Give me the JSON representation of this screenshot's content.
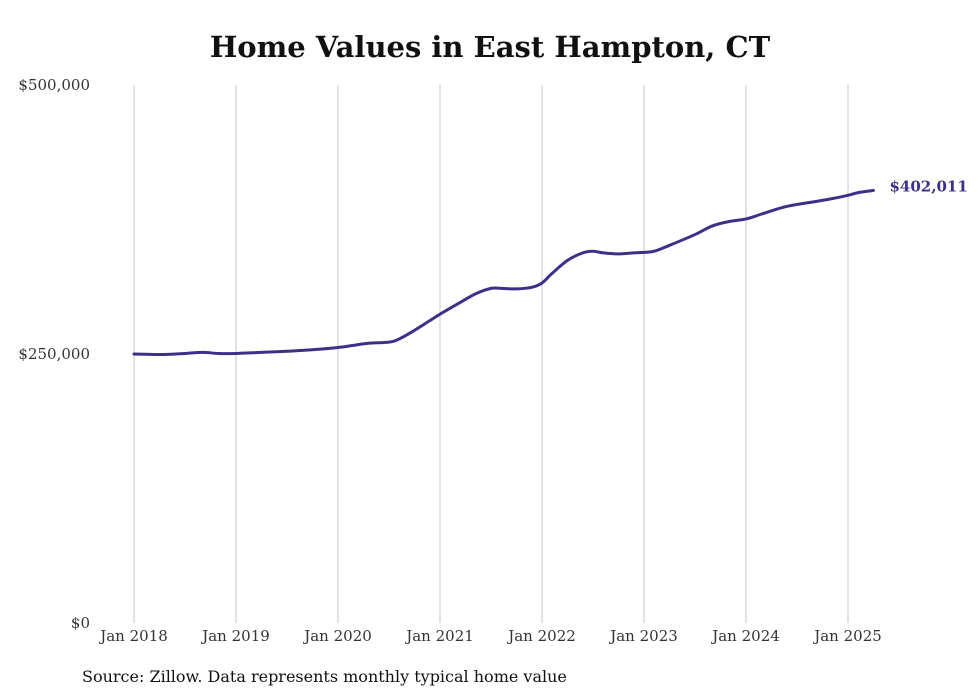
{
  "chart_data": {
    "type": "line",
    "title": "Home Values in East Hampton, CT",
    "xlabel": "",
    "ylabel": "",
    "ylim": [
      0,
      500000
    ],
    "xlim": [
      2018.0,
      2025.25
    ],
    "y_ticks": [
      {
        "value": 0,
        "label": "$0"
      },
      {
        "value": 250000,
        "label": "$250,000"
      },
      {
        "value": 500000,
        "label": "$500,000"
      }
    ],
    "x_ticks": [
      {
        "value": 2018,
        "label": "Jan 2018"
      },
      {
        "value": 2019,
        "label": "Jan 2019"
      },
      {
        "value": 2020,
        "label": "Jan 2020"
      },
      {
        "value": 2021,
        "label": "Jan 2021"
      },
      {
        "value": 2022,
        "label": "Jan 2022"
      },
      {
        "value": 2023,
        "label": "Jan 2023"
      },
      {
        "value": 2024,
        "label": "Jan 2024"
      },
      {
        "value": 2025,
        "label": "Jan 2025"
      }
    ],
    "vertical_gridlines": true,
    "horizontal_gridlines": false,
    "line_color": "#3b3189",
    "series": [
      {
        "x": [
          2018.0,
          2018.25,
          2018.5,
          2018.67,
          2018.83,
          2019.0,
          2019.25,
          2019.5,
          2019.67,
          2019.83,
          2020.0,
          2020.15,
          2020.3,
          2020.5,
          2020.6,
          2020.75,
          2020.9,
          2021.0,
          2021.2,
          2021.35,
          2021.5,
          2021.6,
          2021.75,
          2021.9,
          2022.0,
          2022.1,
          2022.25,
          2022.4,
          2022.5,
          2022.6,
          2022.75,
          2022.9,
          2023.0,
          2023.1,
          2023.25,
          2023.5,
          2023.67,
          2023.83,
          2024.0,
          2024.15,
          2024.35,
          2024.5,
          2024.7,
          2024.85,
          2025.0,
          2025.1,
          2025.25
        ],
        "y": [
          250000,
          249500,
          250500,
          251500,
          250500,
          250500,
          251500,
          252500,
          253500,
          254500,
          256000,
          258000,
          260000,
          261000,
          264000,
          272000,
          281000,
          287000,
          298000,
          306000,
          311000,
          311000,
          310500,
          312000,
          316000,
          325000,
          337000,
          344000,
          345500,
          344000,
          343000,
          344000,
          344500,
          345500,
          351000,
          361000,
          369000,
          373000,
          375500,
          380000,
          386000,
          389000,
          392000,
          394500,
          397500,
          400000,
          402011
        ]
      }
    ],
    "end_label": "$402,011",
    "source_note": "Source: Zillow. Data represents monthly typical home value"
  }
}
